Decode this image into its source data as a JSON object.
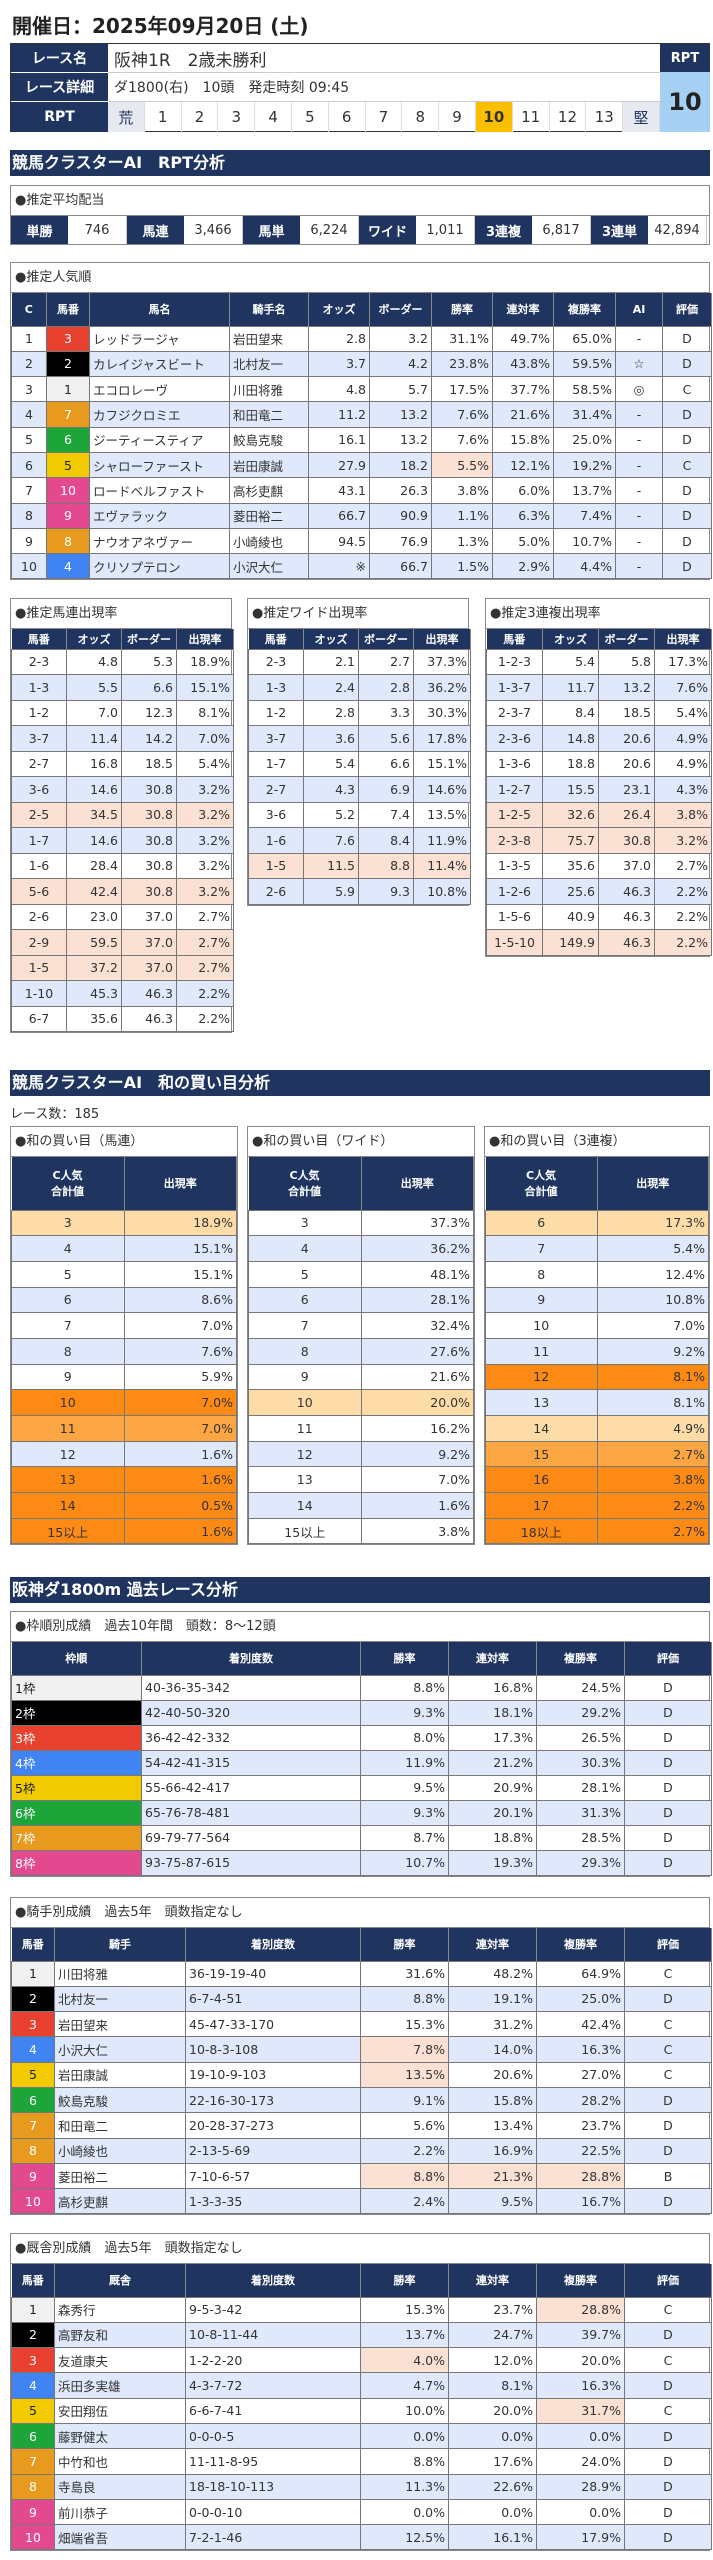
{
  "page_title": "開催日：2025年09月20日 (土)",
  "race": {
    "name_label": "レース名",
    "name": "阪神1R　2歳未勝利",
    "detail_label": "レース詳細",
    "detail": "ダ1800(右)　10頭　発走時刻 09:45",
    "rpt_label": "RPT",
    "scale": [
      "荒",
      "1",
      "2",
      "3",
      "4",
      "5",
      "6",
      "7",
      "8",
      "9",
      "10",
      "11",
      "12",
      "13",
      "堅"
    ],
    "rpt_selected": "10",
    "rpt_box_label": "RPT",
    "rpt_value": "10"
  },
  "sections": {
    "rpt": "競馬クラスターAI　RPT分析",
    "sum": "競馬クラスターAI　和の買い目分析",
    "past": "阪神ダ1800m 過去レース分析"
  },
  "avg": {
    "title": "●推定平均配当",
    "items": [
      {
        "label": "単勝",
        "value": "746"
      },
      {
        "label": "馬連",
        "value": "3,466"
      },
      {
        "label": "馬単",
        "value": "6,224"
      },
      {
        "label": "ワイド",
        "value": "1,011"
      },
      {
        "label": "3連複",
        "value": "6,817"
      },
      {
        "label": "3連単",
        "value": "42,894"
      }
    ]
  },
  "colors": {
    "navy": "#1f3560",
    "blue_row": "#dfe9fb",
    "pink": "#fbe0d4",
    "orange": "#fd8a14",
    "waku": [
      "#f0f0f0",
      "#000000",
      "#e8412f",
      "#3f84f2",
      "#f1cb00",
      "#1ea53a",
      "#e89a1f",
      "#e2498f"
    ]
  },
  "popularity": {
    "title": "●推定人気順",
    "headers": [
      "C",
      "馬番",
      "馬名",
      "騎手名",
      "オッズ",
      "ボーダー",
      "勝率",
      "連対率",
      "複勝率",
      "AI",
      "評価"
    ],
    "rows": [
      [
        "1",
        "3",
        "レッドラージャ",
        "岩田望来",
        "2.8",
        "3.2",
        "31.1%",
        "49.7%",
        "65.0%",
        "-",
        "D"
      ],
      [
        "2",
        "2",
        "カレイジャスビート",
        "北村友一",
        "3.7",
        "4.2",
        "23.8%",
        "43.8%",
        "59.5%",
        "☆",
        "D"
      ],
      [
        "3",
        "1",
        "エコロレーヴ",
        "川田将雅",
        "4.8",
        "5.7",
        "17.5%",
        "37.7%",
        "58.5%",
        "◎",
        "C"
      ],
      [
        "4",
        "7",
        "カフジクロミエ",
        "和田竜二",
        "11.2",
        "13.2",
        "7.6%",
        "21.6%",
        "31.4%",
        "-",
        "D"
      ],
      [
        "5",
        "6",
        "ジーティースティア",
        "鮫島克駿",
        "16.1",
        "13.2",
        "7.6%",
        "15.8%",
        "25.0%",
        "-",
        "D"
      ],
      [
        "6",
        "5",
        "シャローファースト",
        "岩田康誠",
        "27.9",
        "18.2",
        "5.5%",
        "12.1%",
        "19.2%",
        "-",
        "C"
      ],
      [
        "7",
        "10",
        "ロードベルファスト",
        "高杉吏麒",
        "43.1",
        "26.3",
        "3.8%",
        "6.0%",
        "13.7%",
        "-",
        "D"
      ],
      [
        "8",
        "9",
        "エヴァラック",
        "菱田裕二",
        "66.7",
        "90.9",
        "1.1%",
        "6.3%",
        "7.4%",
        "-",
        "D"
      ],
      [
        "9",
        "8",
        "ナウオアネヴァー",
        "小崎綾也",
        "94.5",
        "76.9",
        "1.3%",
        "5.0%",
        "10.7%",
        "-",
        "D"
      ],
      [
        "10",
        "4",
        "クリソプテロン",
        "小沢大仁",
        "※",
        "66.7",
        "1.5%",
        "2.9%",
        "4.4%",
        "-",
        "D"
      ]
    ],
    "waku": [
      3,
      2,
      1,
      7,
      6,
      5,
      8,
      8,
      7,
      4
    ],
    "hl": [
      [],
      [],
      [],
      [],
      [],
      [
        6
      ],
      [],
      [],
      [],
      []
    ]
  },
  "umaren": {
    "title": "●推定馬連出現率",
    "headers": [
      "馬番",
      "オッズ",
      "ボーダー",
      "出現率"
    ],
    "rows": [
      [
        "2-3",
        "4.8",
        "5.3",
        "18.9%"
      ],
      [
        "1-3",
        "5.5",
        "6.6",
        "15.1%"
      ],
      [
        "1-2",
        "7.0",
        "12.3",
        "8.1%"
      ],
      [
        "3-7",
        "11.4",
        "14.2",
        "7.0%"
      ],
      [
        "2-7",
        "16.8",
        "18.5",
        "5.4%"
      ],
      [
        "3-6",
        "14.6",
        "30.8",
        "3.2%"
      ],
      [
        "2-5",
        "34.5",
        "30.8",
        "3.2%"
      ],
      [
        "1-7",
        "14.6",
        "30.8",
        "3.2%"
      ],
      [
        "1-6",
        "28.4",
        "30.8",
        "3.2%"
      ],
      [
        "5-6",
        "42.4",
        "30.8",
        "3.2%"
      ],
      [
        "2-6",
        "23.0",
        "37.0",
        "2.7%"
      ],
      [
        "2-9",
        "59.5",
        "37.0",
        "2.7%"
      ],
      [
        "1-5",
        "37.2",
        "37.0",
        "2.7%"
      ],
      [
        "1-10",
        "45.3",
        "46.3",
        "2.2%"
      ],
      [
        "6-7",
        "35.6",
        "46.3",
        "2.2%"
      ]
    ],
    "tone": [
      "",
      "b",
      "",
      "b",
      "",
      "b",
      "p",
      "b",
      "",
      "p",
      "",
      "p",
      "p",
      "b",
      ""
    ]
  },
  "wide": {
    "title": "●推定ワイド出現率",
    "headers": [
      "馬番",
      "オッズ",
      "ボーダー",
      "出現率"
    ],
    "rows": [
      [
        "2-3",
        "2.1",
        "2.7",
        "37.3%"
      ],
      [
        "1-3",
        "2.4",
        "2.8",
        "36.2%"
      ],
      [
        "1-2",
        "2.8",
        "3.3",
        "30.3%"
      ],
      [
        "3-7",
        "3.6",
        "5.6",
        "17.8%"
      ],
      [
        "1-7",
        "5.4",
        "6.6",
        "15.1%"
      ],
      [
        "2-7",
        "4.3",
        "6.9",
        "14.6%"
      ],
      [
        "3-6",
        "5.2",
        "7.4",
        "13.5%"
      ],
      [
        "1-6",
        "7.6",
        "8.4",
        "11.9%"
      ],
      [
        "1-5",
        "11.5",
        "8.8",
        "11.4%"
      ],
      [
        "2-6",
        "5.9",
        "9.3",
        "10.8%"
      ]
    ],
    "tone": [
      "",
      "b",
      "",
      "b",
      "",
      "b",
      "",
      "b",
      "p",
      "b"
    ]
  },
  "sanrenpuku": {
    "title": "●推定3連複出現率",
    "headers": [
      "馬番",
      "オッズ",
      "ボーダー",
      "出現率"
    ],
    "rows": [
      [
        "1-2-3",
        "5.4",
        "5.8",
        "17.3%"
      ],
      [
        "1-3-7",
        "11.7",
        "13.2",
        "7.6%"
      ],
      [
        "2-3-7",
        "8.4",
        "18.5",
        "5.4%"
      ],
      [
        "2-3-6",
        "14.8",
        "20.6",
        "4.9%"
      ],
      [
        "1-3-6",
        "18.8",
        "20.6",
        "4.9%"
      ],
      [
        "1-2-7",
        "15.5",
        "23.1",
        "4.3%"
      ],
      [
        "1-2-5",
        "32.6",
        "26.4",
        "3.8%"
      ],
      [
        "2-3-8",
        "75.7",
        "30.8",
        "3.2%"
      ],
      [
        "1-3-5",
        "35.6",
        "37.0",
        "2.7%"
      ],
      [
        "1-2-6",
        "25.6",
        "46.3",
        "2.2%"
      ],
      [
        "1-5-6",
        "40.9",
        "46.3",
        "2.2%"
      ],
      [
        "1-5-10",
        "149.9",
        "46.3",
        "2.2%"
      ]
    ],
    "tone": [
      "",
      "b",
      "",
      "b",
      "",
      "b",
      "p",
      "p",
      "",
      "b",
      "",
      "p"
    ]
  },
  "race_count": "レース数：185",
  "sum_umaren": {
    "title": "●和の買い目（馬連）",
    "headers": [
      "C人気\n合計値",
      "出現率"
    ],
    "rows": [
      [
        "3",
        "18.9%"
      ],
      [
        "4",
        "15.1%"
      ],
      [
        "5",
        "15.1%"
      ],
      [
        "6",
        "8.6%"
      ],
      [
        "7",
        "7.0%"
      ],
      [
        "8",
        "7.6%"
      ],
      [
        "9",
        "5.9%"
      ],
      [
        "10",
        "7.0%"
      ],
      [
        "11",
        "7.0%"
      ],
      [
        "12",
        "1.6%"
      ],
      [
        "13",
        "1.6%"
      ],
      [
        "14",
        "0.5%"
      ],
      [
        "15以上",
        "1.6%"
      ]
    ],
    "tone": [
      "pa",
      "b",
      "",
      "b",
      "",
      "b",
      "",
      "o",
      "lo",
      "b",
      "o",
      "o",
      "o"
    ]
  },
  "sum_wide": {
    "title": "●和の買い目（ワイド）",
    "headers": [
      "C人気\n合計値",
      "出現率"
    ],
    "rows": [
      [
        "3",
        "37.3%"
      ],
      [
        "4",
        "36.2%"
      ],
      [
        "5",
        "48.1%"
      ],
      [
        "6",
        "28.1%"
      ],
      [
        "7",
        "32.4%"
      ],
      [
        "8",
        "27.6%"
      ],
      [
        "9",
        "21.6%"
      ],
      [
        "10",
        "20.0%"
      ],
      [
        "11",
        "16.2%"
      ],
      [
        "12",
        "9.2%"
      ],
      [
        "13",
        "7.0%"
      ],
      [
        "14",
        "1.6%"
      ],
      [
        "15以上",
        "3.8%"
      ]
    ],
    "tone": [
      "",
      "b",
      "",
      "b",
      "",
      "b",
      "",
      "pa",
      "",
      "b",
      "",
      "b",
      ""
    ]
  },
  "sum_sanrenpuku": {
    "title": "●和の買い目（3連複）",
    "headers": [
      "C人気\n合計値",
      "出現率"
    ],
    "rows": [
      [
        "6",
        "17.3%"
      ],
      [
        "7",
        "5.4%"
      ],
      [
        "8",
        "12.4%"
      ],
      [
        "9",
        "10.8%"
      ],
      [
        "10",
        "7.0%"
      ],
      [
        "11",
        "9.2%"
      ],
      [
        "12",
        "8.1%"
      ],
      [
        "13",
        "8.1%"
      ],
      [
        "14",
        "4.9%"
      ],
      [
        "15",
        "2.7%"
      ],
      [
        "16",
        "3.8%"
      ],
      [
        "17",
        "2.2%"
      ],
      [
        "18以上",
        "2.7%"
      ]
    ],
    "tone": [
      "pa",
      "b",
      "",
      "b",
      "",
      "b",
      "o",
      "b",
      "pa",
      "lo",
      "o",
      "o",
      "o"
    ]
  },
  "waku_stats": {
    "title": "●枠順別成績　過去10年間　頭数：8～12頭",
    "headers": [
      "枠順",
      "着別度数",
      "勝率",
      "連対率",
      "複勝率",
      "評価"
    ],
    "rows": [
      [
        "1枠",
        "40-36-35-342",
        "8.8%",
        "16.8%",
        "24.5%",
        "D"
      ],
      [
        "2枠",
        "42-40-50-320",
        "9.3%",
        "18.1%",
        "29.2%",
        "D"
      ],
      [
        "3枠",
        "36-42-42-332",
        "8.0%",
        "17.3%",
        "26.5%",
        "D"
      ],
      [
        "4枠",
        "54-42-41-315",
        "11.9%",
        "21.2%",
        "30.3%",
        "D"
      ],
      [
        "5枠",
        "55-66-42-417",
        "9.5%",
        "20.9%",
        "28.1%",
        "D"
      ],
      [
        "6枠",
        "65-76-78-481",
        "9.3%",
        "20.1%",
        "31.3%",
        "D"
      ],
      [
        "7枠",
        "69-79-77-564",
        "8.7%",
        "18.8%",
        "28.5%",
        "D"
      ],
      [
        "8枠",
        "93-75-87-615",
        "10.7%",
        "19.3%",
        "29.3%",
        "D"
      ]
    ],
    "waku": [
      1,
      2,
      3,
      4,
      5,
      6,
      7,
      8
    ]
  },
  "jockey_stats": {
    "title": "●騎手別成績　過去5年　頭数指定なし",
    "headers": [
      "馬番",
      "騎手",
      "着別度数",
      "勝率",
      "連対率",
      "複勝率",
      "評価"
    ],
    "rows": [
      [
        "1",
        "川田将雅",
        "36-19-19-40",
        "31.6%",
        "48.2%",
        "64.9%",
        "C"
      ],
      [
        "2",
        "北村友一",
        "6-7-4-51",
        "8.8%",
        "19.1%",
        "25.0%",
        "D"
      ],
      [
        "3",
        "岩田望来",
        "45-47-33-170",
        "15.3%",
        "31.2%",
        "42.4%",
        "C"
      ],
      [
        "4",
        "小沢大仁",
        "10-8-3-108",
        "7.8%",
        "14.0%",
        "16.3%",
        "C"
      ],
      [
        "5",
        "岩田康誠",
        "19-10-9-103",
        "13.5%",
        "20.6%",
        "27.0%",
        "C"
      ],
      [
        "6",
        "鮫島克駿",
        "22-16-30-173",
        "9.1%",
        "15.8%",
        "28.2%",
        "D"
      ],
      [
        "7",
        "和田竜二",
        "20-28-37-273",
        "5.6%",
        "13.4%",
        "23.7%",
        "D"
      ],
      [
        "8",
        "小崎綾也",
        "2-13-5-69",
        "2.2%",
        "16.9%",
        "22.5%",
        "D"
      ],
      [
        "9",
        "菱田裕二",
        "7-10-6-57",
        "8.8%",
        "21.3%",
        "28.8%",
        "B"
      ],
      [
        "10",
        "高杉吏麒",
        "1-3-3-35",
        "2.4%",
        "9.5%",
        "16.7%",
        "D"
      ]
    ],
    "waku": [
      1,
      2,
      3,
      4,
      5,
      6,
      7,
      7,
      8,
      8
    ],
    "hl": [
      [],
      [],
      [],
      [
        3
      ],
      [
        3
      ],
      [],
      [],
      [],
      [
        3,
        4,
        5
      ],
      []
    ]
  },
  "trainer_stats": {
    "title": "●厩舎別成績　過去5年　頭数指定なし",
    "headers": [
      "馬番",
      "厩舎",
      "着別度数",
      "勝率",
      "連対率",
      "複勝率",
      "評価"
    ],
    "rows": [
      [
        "1",
        "森秀行",
        "9-5-3-42",
        "15.3%",
        "23.7%",
        "28.8%",
        "C"
      ],
      [
        "2",
        "高野友和",
        "10-8-11-44",
        "13.7%",
        "24.7%",
        "39.7%",
        "D"
      ],
      [
        "3",
        "友道康夫",
        "1-2-2-20",
        "4.0%",
        "12.0%",
        "20.0%",
        "C"
      ],
      [
        "4",
        "浜田多実雄",
        "4-3-7-72",
        "4.7%",
        "8.1%",
        "16.3%",
        "D"
      ],
      [
        "5",
        "安田翔伍",
        "6-6-7-41",
        "10.0%",
        "20.0%",
        "31.7%",
        "C"
      ],
      [
        "6",
        "藤野健太",
        "0-0-0-5",
        "0.0%",
        "0.0%",
        "0.0%",
        "D"
      ],
      [
        "7",
        "中竹和也",
        "11-11-8-95",
        "8.8%",
        "17.6%",
        "24.0%",
        "D"
      ],
      [
        "8",
        "寺島良",
        "18-18-10-113",
        "11.3%",
        "22.6%",
        "28.9%",
        "D"
      ],
      [
        "9",
        "前川恭子",
        "0-0-0-10",
        "0.0%",
        "0.0%",
        "0.0%",
        "D"
      ],
      [
        "10",
        "畑端省吾",
        "7-2-1-46",
        "12.5%",
        "16.1%",
        "17.9%",
        "D"
      ]
    ],
    "waku": [
      1,
      2,
      3,
      4,
      5,
      6,
      7,
      7,
      8,
      8
    ],
    "hl": [
      [
        5
      ],
      [],
      [
        3
      ],
      [],
      [
        5
      ],
      [],
      [],
      [],
      [],
      []
    ]
  }
}
